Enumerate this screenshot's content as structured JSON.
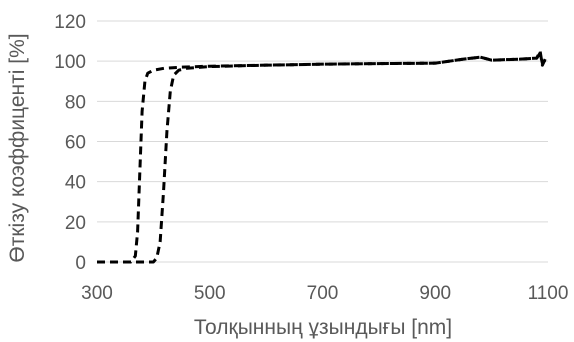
{
  "chart_data": {
    "type": "line",
    "xlabel": "Толқынның ұзындығы [nm]",
    "ylabel": "Өткізу коэффиценті [%]",
    "xlim": [
      300,
      1100
    ],
    "ylim": [
      0,
      120
    ],
    "x_ticks": [
      "300",
      "500",
      "700",
      "900",
      "1100"
    ],
    "y_ticks": [
      "0",
      "20",
      "40",
      "60",
      "80",
      "100",
      "120"
    ],
    "grid": "horizontal",
    "legend": "none",
    "series": [
      {
        "color": "#000000",
        "line_style": "dashed",
        "x": [
          300,
          340,
          360,
          368,
          372,
          376,
          380,
          385,
          390,
          400,
          420,
          450,
          500,
          600,
          700,
          800,
          900,
          950,
          980,
          1000,
          1050,
          1080,
          1086,
          1090,
          1095
        ],
        "y": [
          0,
          0,
          0,
          3,
          15,
          45,
          75,
          90,
          94,
          95.5,
          96.5,
          97,
          97.5,
          98,
          98.5,
          98.8,
          99,
          101,
          102,
          100.5,
          101,
          101.5,
          105,
          98,
          101
        ]
      },
      {
        "color": "#000000",
        "line_style": "dashed",
        "x": [
          300,
          380,
          400,
          406,
          412,
          418,
          424,
          430,
          436,
          445,
          460,
          500,
          600,
          700,
          800,
          900,
          950,
          980,
          1000,
          1050,
          1080,
          1086,
          1090,
          1095
        ],
        "y": [
          0,
          0,
          0,
          2,
          10,
          35,
          65,
          85,
          93,
          95.5,
          96.5,
          97.3,
          98,
          98.5,
          98.8,
          99,
          101,
          102,
          100.5,
          101,
          101.5,
          104,
          99,
          100.5
        ]
      }
    ]
  }
}
